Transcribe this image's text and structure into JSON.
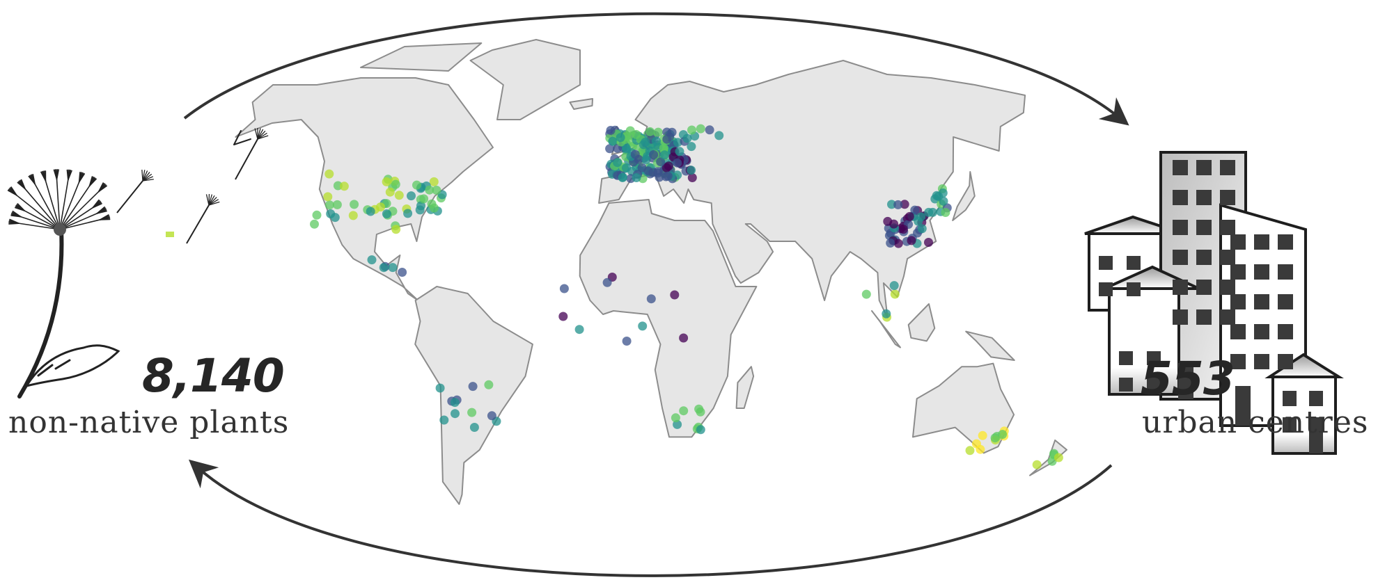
{
  "left": {
    "count": "8,140",
    "label": "non-native plants",
    "icon": "dandelion-icon"
  },
  "right": {
    "count": "553",
    "label": "urban centres",
    "icon": "buildings-icon"
  },
  "map": {
    "projection": "robinson",
    "land_color": "#e6e6e6",
    "border_color": "#8c8c8c",
    "point_palette": [
      "#440154",
      "#3b528b",
      "#21918c",
      "#5ec962",
      "#b5de2b",
      "#fde725"
    ]
  },
  "arrows": {
    "color": "#333333",
    "direction": "clockwise cycle"
  }
}
